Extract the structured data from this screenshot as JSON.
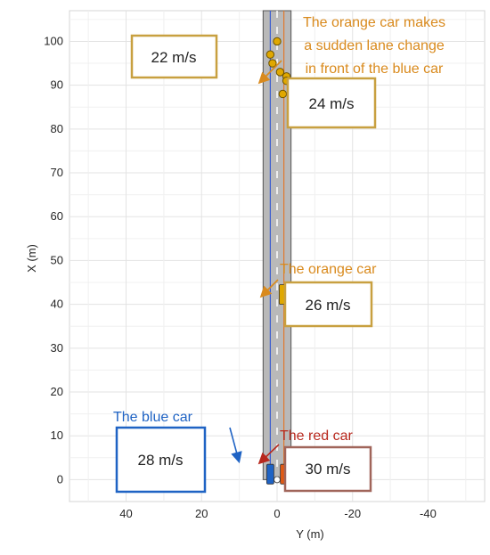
{
  "axes": {
    "xlabel": "Y (m)",
    "ylabel": "X (m)",
    "x_ticks": [
      "40",
      "20",
      "0",
      "-20",
      "-40"
    ],
    "y_ticks": [
      "0",
      "10",
      "20",
      "30",
      "40",
      "50",
      "60",
      "70",
      "80",
      "90",
      "100"
    ],
    "xlim": [
      55,
      -55
    ],
    "ylim": [
      -5,
      107
    ]
  },
  "road": {
    "center_y": 0,
    "half_width": 3.7,
    "lanes": [
      -1.8,
      1.8
    ]
  },
  "annotations": {
    "lane_change": [
      "The orange car makes",
      "a sudden lane change",
      "in front of the blue car"
    ],
    "orange_car": "The orange car",
    "blue_car": "The blue car",
    "red_car": "The red car"
  },
  "speeds": {
    "top_left": "22 m/s",
    "lane_change": "24 m/s",
    "orange": "26 m/s",
    "blue": "28 m/s",
    "red": "30 m/s"
  },
  "colors": {
    "orange": "#e0a800",
    "orange_text": "#d98a1d",
    "blue": "#1f63c4",
    "red": "#b8281d",
    "red_car": "#e05a14",
    "gold_box": "#c8a040",
    "red_box": "#a0655a",
    "road": "#b9b9b9",
    "blue_line": "#3a5bd0",
    "orange_line": "#e07a2e"
  },
  "chart_data": {
    "type": "scatter",
    "xlabel": "Y (m)",
    "ylabel": "X (m)",
    "xlim": [
      55,
      -55
    ],
    "ylim": [
      -5,
      107
    ],
    "grid": true,
    "series": [
      {
        "values": [
          [
            0,
            100
          ],
          [
            1.8,
            97
          ],
          [
            1.2,
            95
          ],
          [
            -0.8,
            93
          ],
          [
            -2.5,
            92
          ],
          [
            -2.5,
            91
          ],
          [
            -1.5,
            88
          ]
        ]
      }
    ]
  }
}
